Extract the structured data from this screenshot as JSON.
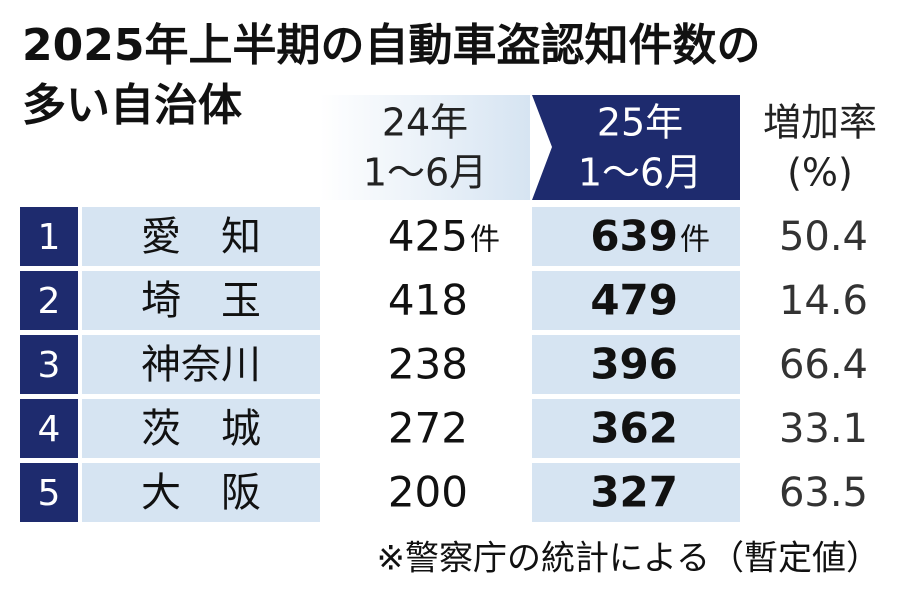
{
  "title": {
    "line1": "2025年上半期の自動車盗認知件数の",
    "line2": "多い自治体"
  },
  "table": {
    "headers": [
      {
        "line1": "24年",
        "line2": "1～6月"
      },
      {
        "line1": "25年",
        "line2": "1～6月"
      },
      {
        "line1": "増加率",
        "line2": "(%)"
      }
    ],
    "rows": [
      {
        "rank": "1",
        "name": "愛　知",
        "y24": "425",
        "y24_unit": "件",
        "y25": "639",
        "y25_unit": "件",
        "rate": "50.4"
      },
      {
        "rank": "2",
        "name": "埼　玉",
        "y24": "418",
        "y25": "479",
        "rate": "14.6"
      },
      {
        "rank": "3",
        "name": "神奈川",
        "y24": "238",
        "y25": "396",
        "rate": "66.4"
      },
      {
        "rank": "4",
        "name": "茨　城",
        "y24": "272",
        "y25": "362",
        "rate": "33.1"
      },
      {
        "rank": "5",
        "name": "大　阪",
        "y24": "200",
        "y25": "327",
        "rate": "63.5"
      }
    ]
  },
  "footnote": "※警察庁の統計による（暫定値）"
}
